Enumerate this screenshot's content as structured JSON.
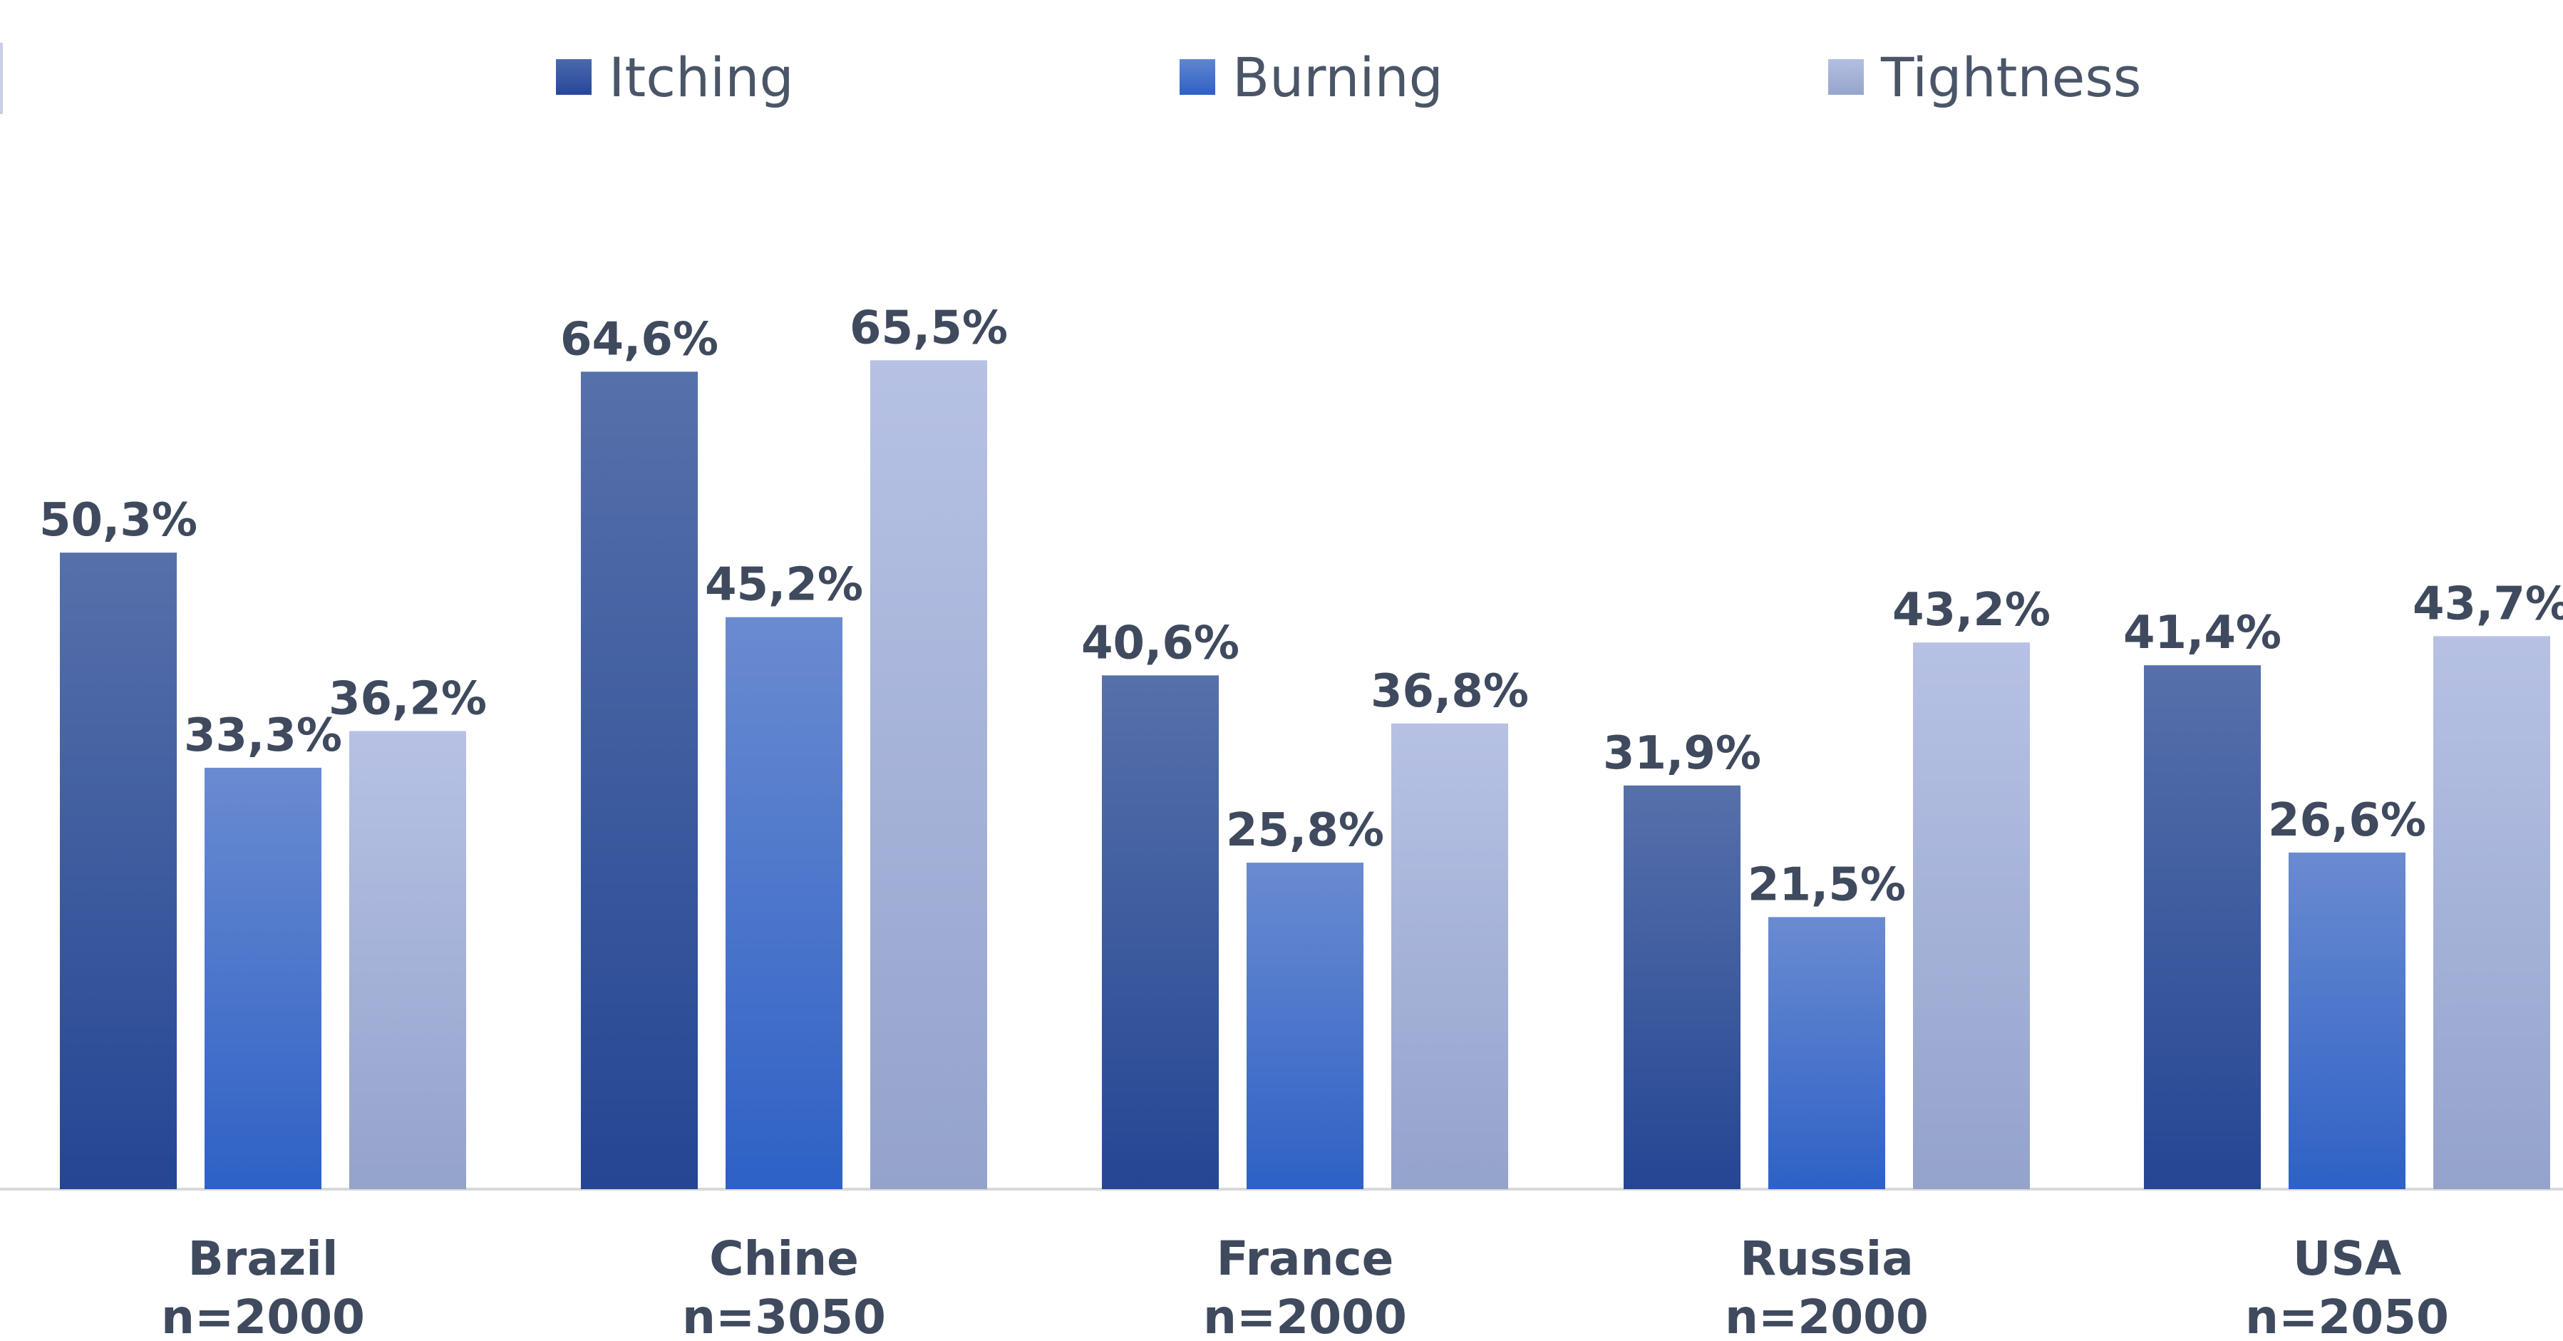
{
  "chart_data": {
    "type": "bar",
    "title": "",
    "xlabel": "",
    "ylabel": "",
    "ylim": [
      0,
      70
    ],
    "grid": false,
    "legend_position": "top",
    "categories": [
      "Brazil",
      "Chine",
      "France",
      "Russia",
      "USA"
    ],
    "category_samples": [
      "n=2000",
      "n=3050",
      "n=2000",
      "n=2000",
      "n=2050"
    ],
    "series": [
      {
        "name": "Itching",
        "color": "#2d4f9c",
        "values": [
          50.3,
          64.6,
          40.6,
          31.9,
          41.4
        ],
        "labels": [
          "50,3%",
          "64,6%",
          "40,6%",
          "31,9%",
          "41,4%"
        ]
      },
      {
        "name": "Burning",
        "color": "#3a68c8",
        "values": [
          33.3,
          45.2,
          25.8,
          21.5,
          26.6
        ],
        "labels": [
          "33,3%",
          "45,2%",
          "25,8%",
          "21,5%",
          "26,6%"
        ]
      },
      {
        "name": "Tightness",
        "color": "#a6b3da",
        "values": [
          36.2,
          65.5,
          36.8,
          43.2,
          43.7
        ],
        "labels": [
          "36,2%",
          "65,5%",
          "36,8%",
          "43,2%",
          "43,7%"
        ]
      }
    ]
  },
  "colors": {
    "label_text": "#3f4a5e",
    "axis_line": "#d9d9d9"
  }
}
